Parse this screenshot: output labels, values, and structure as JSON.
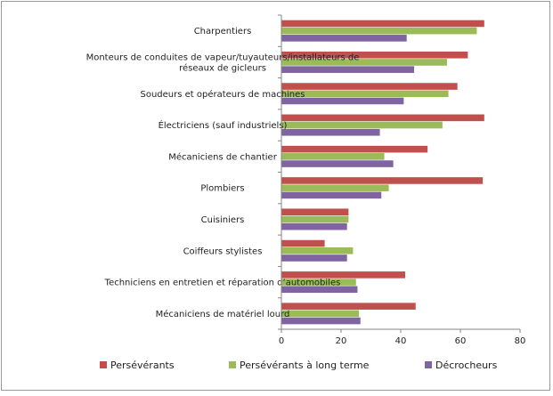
{
  "chart_data": {
    "type": "bar",
    "orientation": "horizontal",
    "categories": [
      "Charpentiers",
      "Monteurs de conduites de vapeur/tuyauteurs/installateurs de réseaux de gicleurs",
      "Soudeurs et opérateurs de machines",
      "Électriciens (sauf industriels)",
      "Mécaniciens de chantier",
      "Plombiers",
      "Cuisiniers",
      "Coiffeurs stylistes",
      "Techniciens en entretien et réparation d’automobiles",
      "Mécaniciens de matériel lourd"
    ],
    "category_lines": [
      [
        "Charpentiers"
      ],
      [
        "Monteurs de conduites de vapeur/tuyauteurs/installateurs de",
        "réseaux de gicleurs"
      ],
      [
        "Soudeurs et opérateurs de machines"
      ],
      [
        "Électriciens (sauf industriels)"
      ],
      [
        "Mécaniciens de chantier"
      ],
      [
        "Plombiers"
      ],
      [
        "Cuisiniers"
      ],
      [
        "Coiffeurs stylistes"
      ],
      [
        "Techniciens en entretien et réparation d’automobiles"
      ],
      [
        "Mécaniciens de matériel lourd"
      ]
    ],
    "series": [
      {
        "name": "Persévérants",
        "color": "#c0504d",
        "values": [
          68,
          62.5,
          59,
          68,
          49,
          67.5,
          22.5,
          14.5,
          41.5,
          45
        ]
      },
      {
        "name": "Persévérants à long terme",
        "color": "#9bbb59",
        "values": [
          65.5,
          55.5,
          56,
          54,
          34.5,
          36,
          22.5,
          24,
          25,
          26
        ]
      },
      {
        "name": "Décrocheurs",
        "color": "#8064a2",
        "values": [
          42,
          44.5,
          41,
          33,
          37.5,
          33.5,
          22,
          22,
          25.5,
          26.5
        ]
      }
    ],
    "xlim": [
      0,
      80
    ],
    "xticks": [
      "0",
      "20",
      "40",
      "60",
      "80"
    ],
    "grid": false,
    "legend_position": "bottom"
  }
}
